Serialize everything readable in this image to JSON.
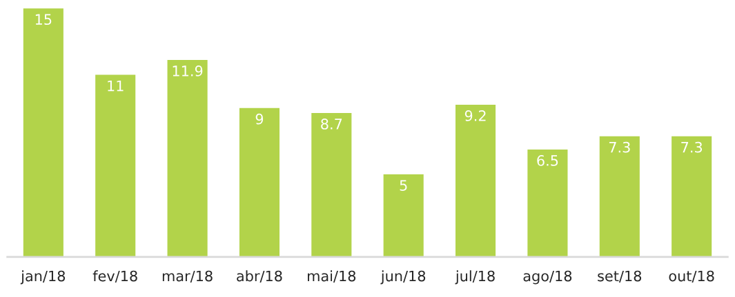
{
  "chart_data": {
    "type": "bar",
    "categories": [
      "jan/18",
      "fev/18",
      "mar/18",
      "abr/18",
      "mai/18",
      "jun/18",
      "jul/18",
      "ago/18",
      "set/18",
      "out/18"
    ],
    "values": [
      15,
      11,
      11.9,
      9,
      8.7,
      5,
      9.2,
      6.5,
      7.3,
      7.3
    ],
    "color": "#b2d34a",
    "data_labels": true,
    "grid": false,
    "legend": false
  }
}
